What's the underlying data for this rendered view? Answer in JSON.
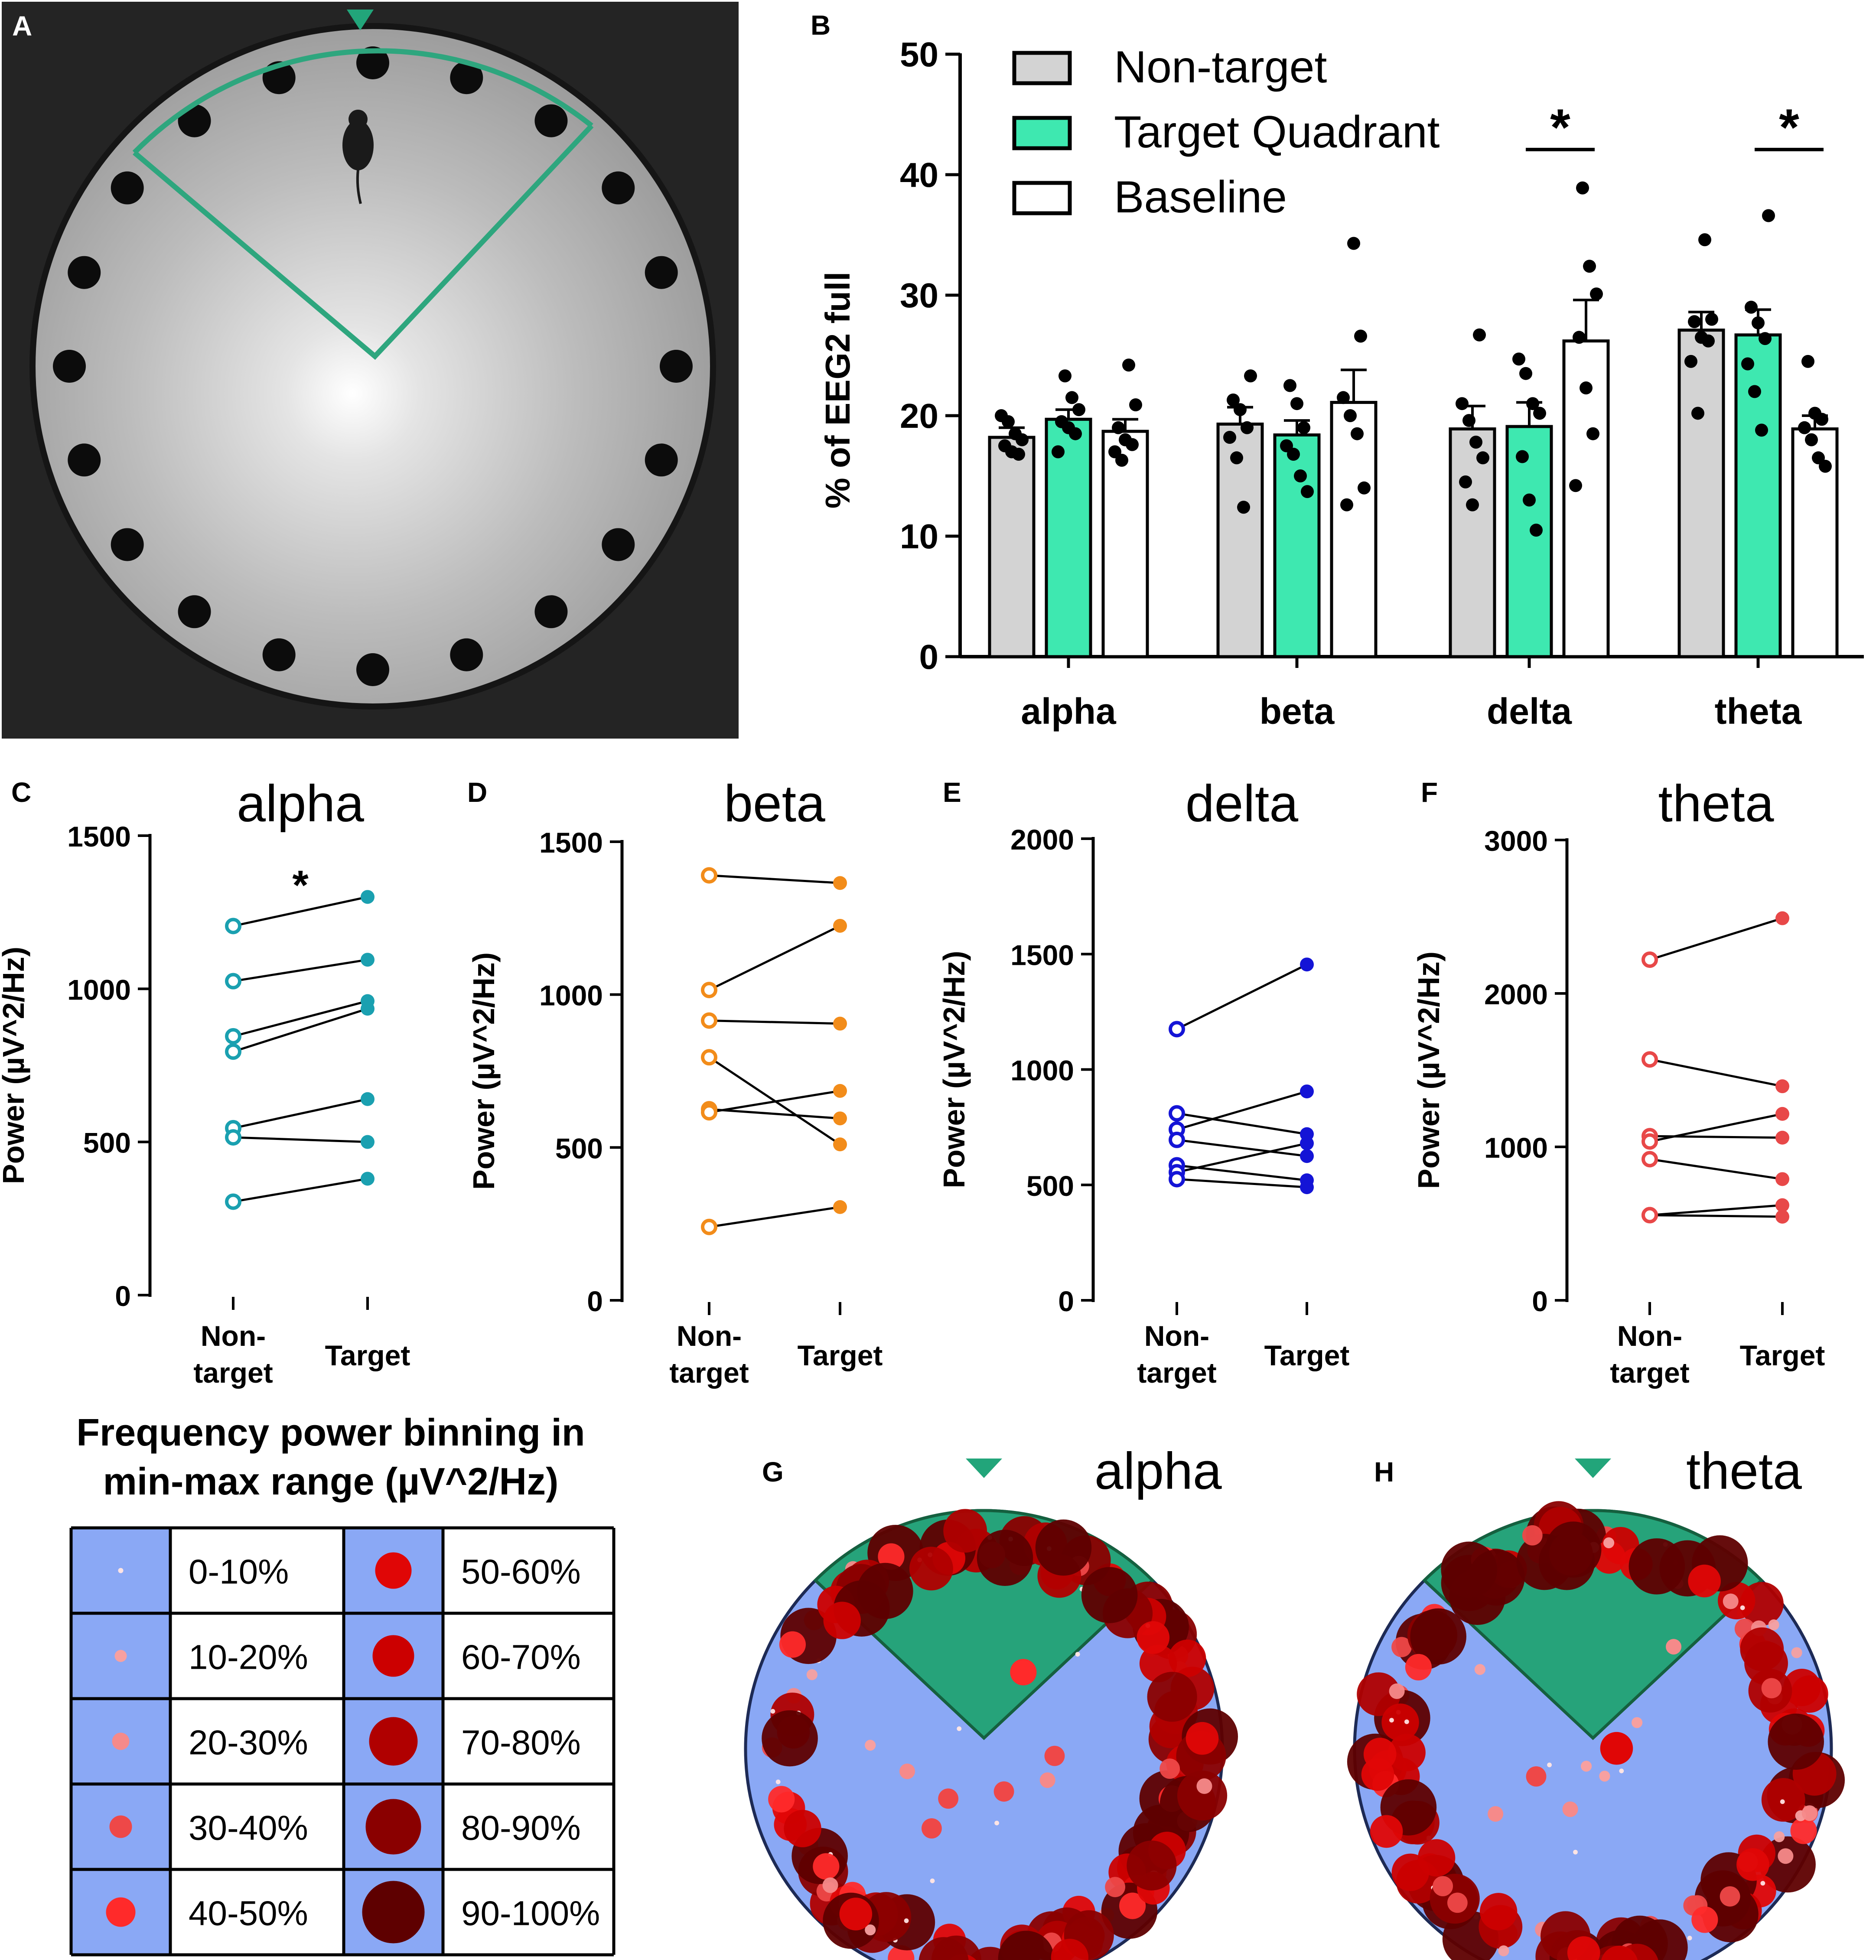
{
  "panel_letters": {
    "a": "A",
    "b": "B",
    "c": "C",
    "d": "D",
    "e": "E",
    "f": "F",
    "g": "G",
    "h": "H"
  },
  "colors": {
    "nontarget_bar": "#d3d3d3",
    "target_bar": "#3ee8b0",
    "baseline_bar": "#ffffff",
    "quadrant": "#2ea67e",
    "arena_blue": "#8aa8f5",
    "quadrant_fill": "#26a37a",
    "alpha": "#1aa0b0",
    "beta": "#f28c1a",
    "delta": "#1414d6",
    "theta": "#e84848"
  },
  "chart_data": [
    {
      "id": "B",
      "type": "bar",
      "title": "",
      "ylabel": "% of EEG2 full",
      "xlabel": "",
      "ylim": [
        0,
        50
      ],
      "yticks": [
        0,
        10,
        20,
        30,
        40,
        50
      ],
      "categories": [
        "alpha",
        "beta",
        "delta",
        "theta"
      ],
      "series": [
        {
          "name": "Non-target",
          "values": [
            18.2,
            19.3,
            18.9,
            27.1
          ],
          "sem": [
            0.8,
            1.4,
            1.9,
            1.5
          ],
          "points": [
            [
              20,
              19.5,
              18.5,
              18,
              17.5,
              17,
              16.8
            ],
            [
              23.3,
              21.3,
              20.5,
              19,
              18.2,
              16.5,
              12.4
            ],
            [
              26.7,
              21,
              19.6,
              17.8,
              16.5,
              14.5,
              12.6
            ],
            [
              34.6,
              28,
              27.8,
              26.5,
              26.2,
              24.5,
              20.2
            ]
          ]
        },
        {
          "name": "Target Quadrant",
          "values": [
            19.7,
            18.4,
            19.1,
            26.7
          ],
          "sem": [
            0.8,
            1.2,
            2.0,
            2.1
          ],
          "points": [
            [
              23.3,
              21.5,
              20.5,
              19.5,
              19,
              18.5,
              17
            ],
            [
              22.5,
              21,
              19,
              17.5,
              16.8,
              15,
              13.7
            ],
            [
              24.7,
              23.5,
              21,
              20.2,
              16.6,
              13,
              10.5
            ],
            [
              36.6,
              29,
              27.7,
              26.4,
              24.3,
              22,
              18.8
            ]
          ]
        },
        {
          "name": "Baseline",
          "values": [
            18.7,
            21.1,
            26.2,
            18.9
          ],
          "sem": [
            1.0,
            2.7,
            3.4,
            1.1
          ],
          "points": [
            [
              24.2,
              20.9,
              19,
              18,
              17.6,
              17,
              16.3
            ],
            [
              34.3,
              26.6,
              21.5,
              20,
              18.5,
              14,
              12.6
            ],
            [
              38.9,
              32.4,
              30.1,
              26.5,
              22.3,
              18.5,
              14.2
            ],
            [
              24.5,
              20.2,
              19.7,
              19,
              18,
              16.5,
              15.8
            ]
          ]
        }
      ],
      "significance": [
        {
          "category": "delta",
          "label": "*"
        },
        {
          "category": "theta",
          "label": "*"
        }
      ]
    },
    {
      "id": "C",
      "type": "line",
      "title": "alpha",
      "ylabel": "Power (µV^2/Hz)",
      "categories": [
        "Non-\ntarget",
        "Target"
      ],
      "ylim": [
        0,
        1500
      ],
      "yticks": [
        0,
        500,
        1000,
        1500
      ],
      "pairs": [
        [
          1205,
          1300
        ],
        [
          1025,
          1095
        ],
        [
          845,
          960
        ],
        [
          795,
          935
        ],
        [
          545,
          640
        ],
        [
          515,
          500
        ],
        [
          305,
          380
        ]
      ],
      "significance": "*"
    },
    {
      "id": "D",
      "type": "line",
      "title": "beta",
      "ylabel": "Power (µV^2/Hz)",
      "categories": [
        "Non-\ntarget",
        "Target"
      ],
      "ylim": [
        0,
        1500
      ],
      "yticks": [
        0,
        500,
        1000,
        1500
      ],
      "pairs": [
        [
          1390,
          1365
        ],
        [
          1015,
          1225
        ],
        [
          915,
          905
        ],
        [
          795,
          510
        ],
        [
          625,
          595
        ],
        [
          615,
          685
        ],
        [
          240,
          305
        ]
      ]
    },
    {
      "id": "E",
      "type": "line",
      "title": "delta",
      "ylabel": "Power (µV^2/Hz)",
      "categories": [
        "Non-\ntarget",
        "Target"
      ],
      "ylim": [
        0,
        2000
      ],
      "yticks": [
        0,
        500,
        1000,
        1500,
        2000
      ],
      "pairs": [
        [
          1175,
          1455
        ],
        [
          810,
          720
        ],
        [
          740,
          905
        ],
        [
          695,
          625
        ],
        [
          585,
          520
        ],
        [
          555,
          680
        ],
        [
          525,
          490
        ]
      ]
    },
    {
      "id": "F",
      "type": "line",
      "title": "theta",
      "ylabel": "Power (µV^2/Hz)",
      "categories": [
        "Non-\ntarget",
        "Target"
      ],
      "ylim": [
        0,
        3000
      ],
      "yticks": [
        0,
        1000,
        2000,
        3000
      ],
      "pairs": [
        [
          2220,
          2490
        ],
        [
          1570,
          1395
        ],
        [
          1070,
          1060
        ],
        [
          1035,
          1215
        ],
        [
          920,
          790
        ],
        [
          555,
          545
        ],
        [
          555,
          620
        ]
      ]
    }
  ],
  "legend_table": {
    "title_line1": "Frequency power binning in",
    "title_line2": "min-max range (µV^2/Hz)",
    "rows": [
      {
        "left": "0-10%",
        "right": "50-60%"
      },
      {
        "left": "10-20%",
        "right": "60-70%"
      },
      {
        "left": "20-30%",
        "right": "70-80%"
      },
      {
        "left": "30-40%",
        "right": "80-90%"
      },
      {
        "left": "40-50%",
        "right": "90-100%"
      }
    ],
    "bin_colors": [
      "#ffe4e4",
      "#f7a0a0",
      "#f58a8a",
      "#ee4848",
      "#ff2a2a",
      "#e00606",
      "#cc0000",
      "#b00000",
      "#8a0000",
      "#5e0000"
    ]
  },
  "maps": [
    {
      "id": "G",
      "title": "alpha"
    },
    {
      "id": "H",
      "title": "theta"
    }
  ]
}
